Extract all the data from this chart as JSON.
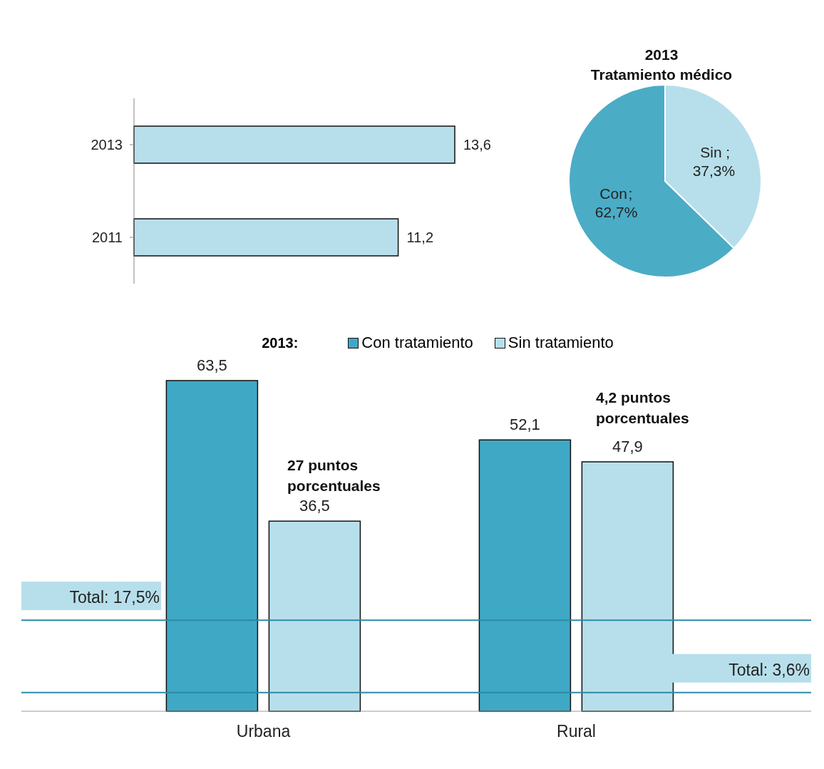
{
  "chart_data": [
    {
      "type": "bar",
      "orientation": "horizontal",
      "categories": [
        "2013",
        "2011"
      ],
      "values": [
        13.6,
        11.2
      ],
      "color": "#b7dfeb",
      "value_labels": [
        "13,6",
        "11,2"
      ]
    },
    {
      "type": "pie",
      "title": "2013",
      "subtitle": "Tratamiento médico",
      "categories": [
        "Con",
        "Sin"
      ],
      "values": [
        62.7,
        37.3
      ],
      "colors": [
        "#4bacc6",
        "#b7dfeb"
      ],
      "value_labels": [
        "; 62,7%",
        "; 37,3%"
      ]
    },
    {
      "type": "bar",
      "categories": [
        "Urbana",
        "Rural"
      ],
      "legend": "top",
      "legend_title": "2013:",
      "series": [
        {
          "name": "Con tratamiento",
          "color": "#3fa9c5",
          "values": [
            63.5,
            52.1
          ],
          "value_labels": [
            "63,5",
            "52,1"
          ]
        },
        {
          "name": "Sin tratamiento",
          "color": "#b7dfeb",
          "values": [
            36.5,
            47.9
          ],
          "value_labels": [
            "36,5",
            "47,9"
          ]
        }
      ],
      "ref_lines": [
        {
          "axis": "y",
          "value": 17.5,
          "label": "Total: 17,5%",
          "color": "#2a8aa8"
        },
        {
          "axis": "y",
          "value": 3.6,
          "label": "Total: 3,6%",
          "color": "#2a8aa8"
        }
      ],
      "annotations": [
        "27 puntos porcentuales",
        "4,2 puntos porcentuales"
      ]
    }
  ]
}
